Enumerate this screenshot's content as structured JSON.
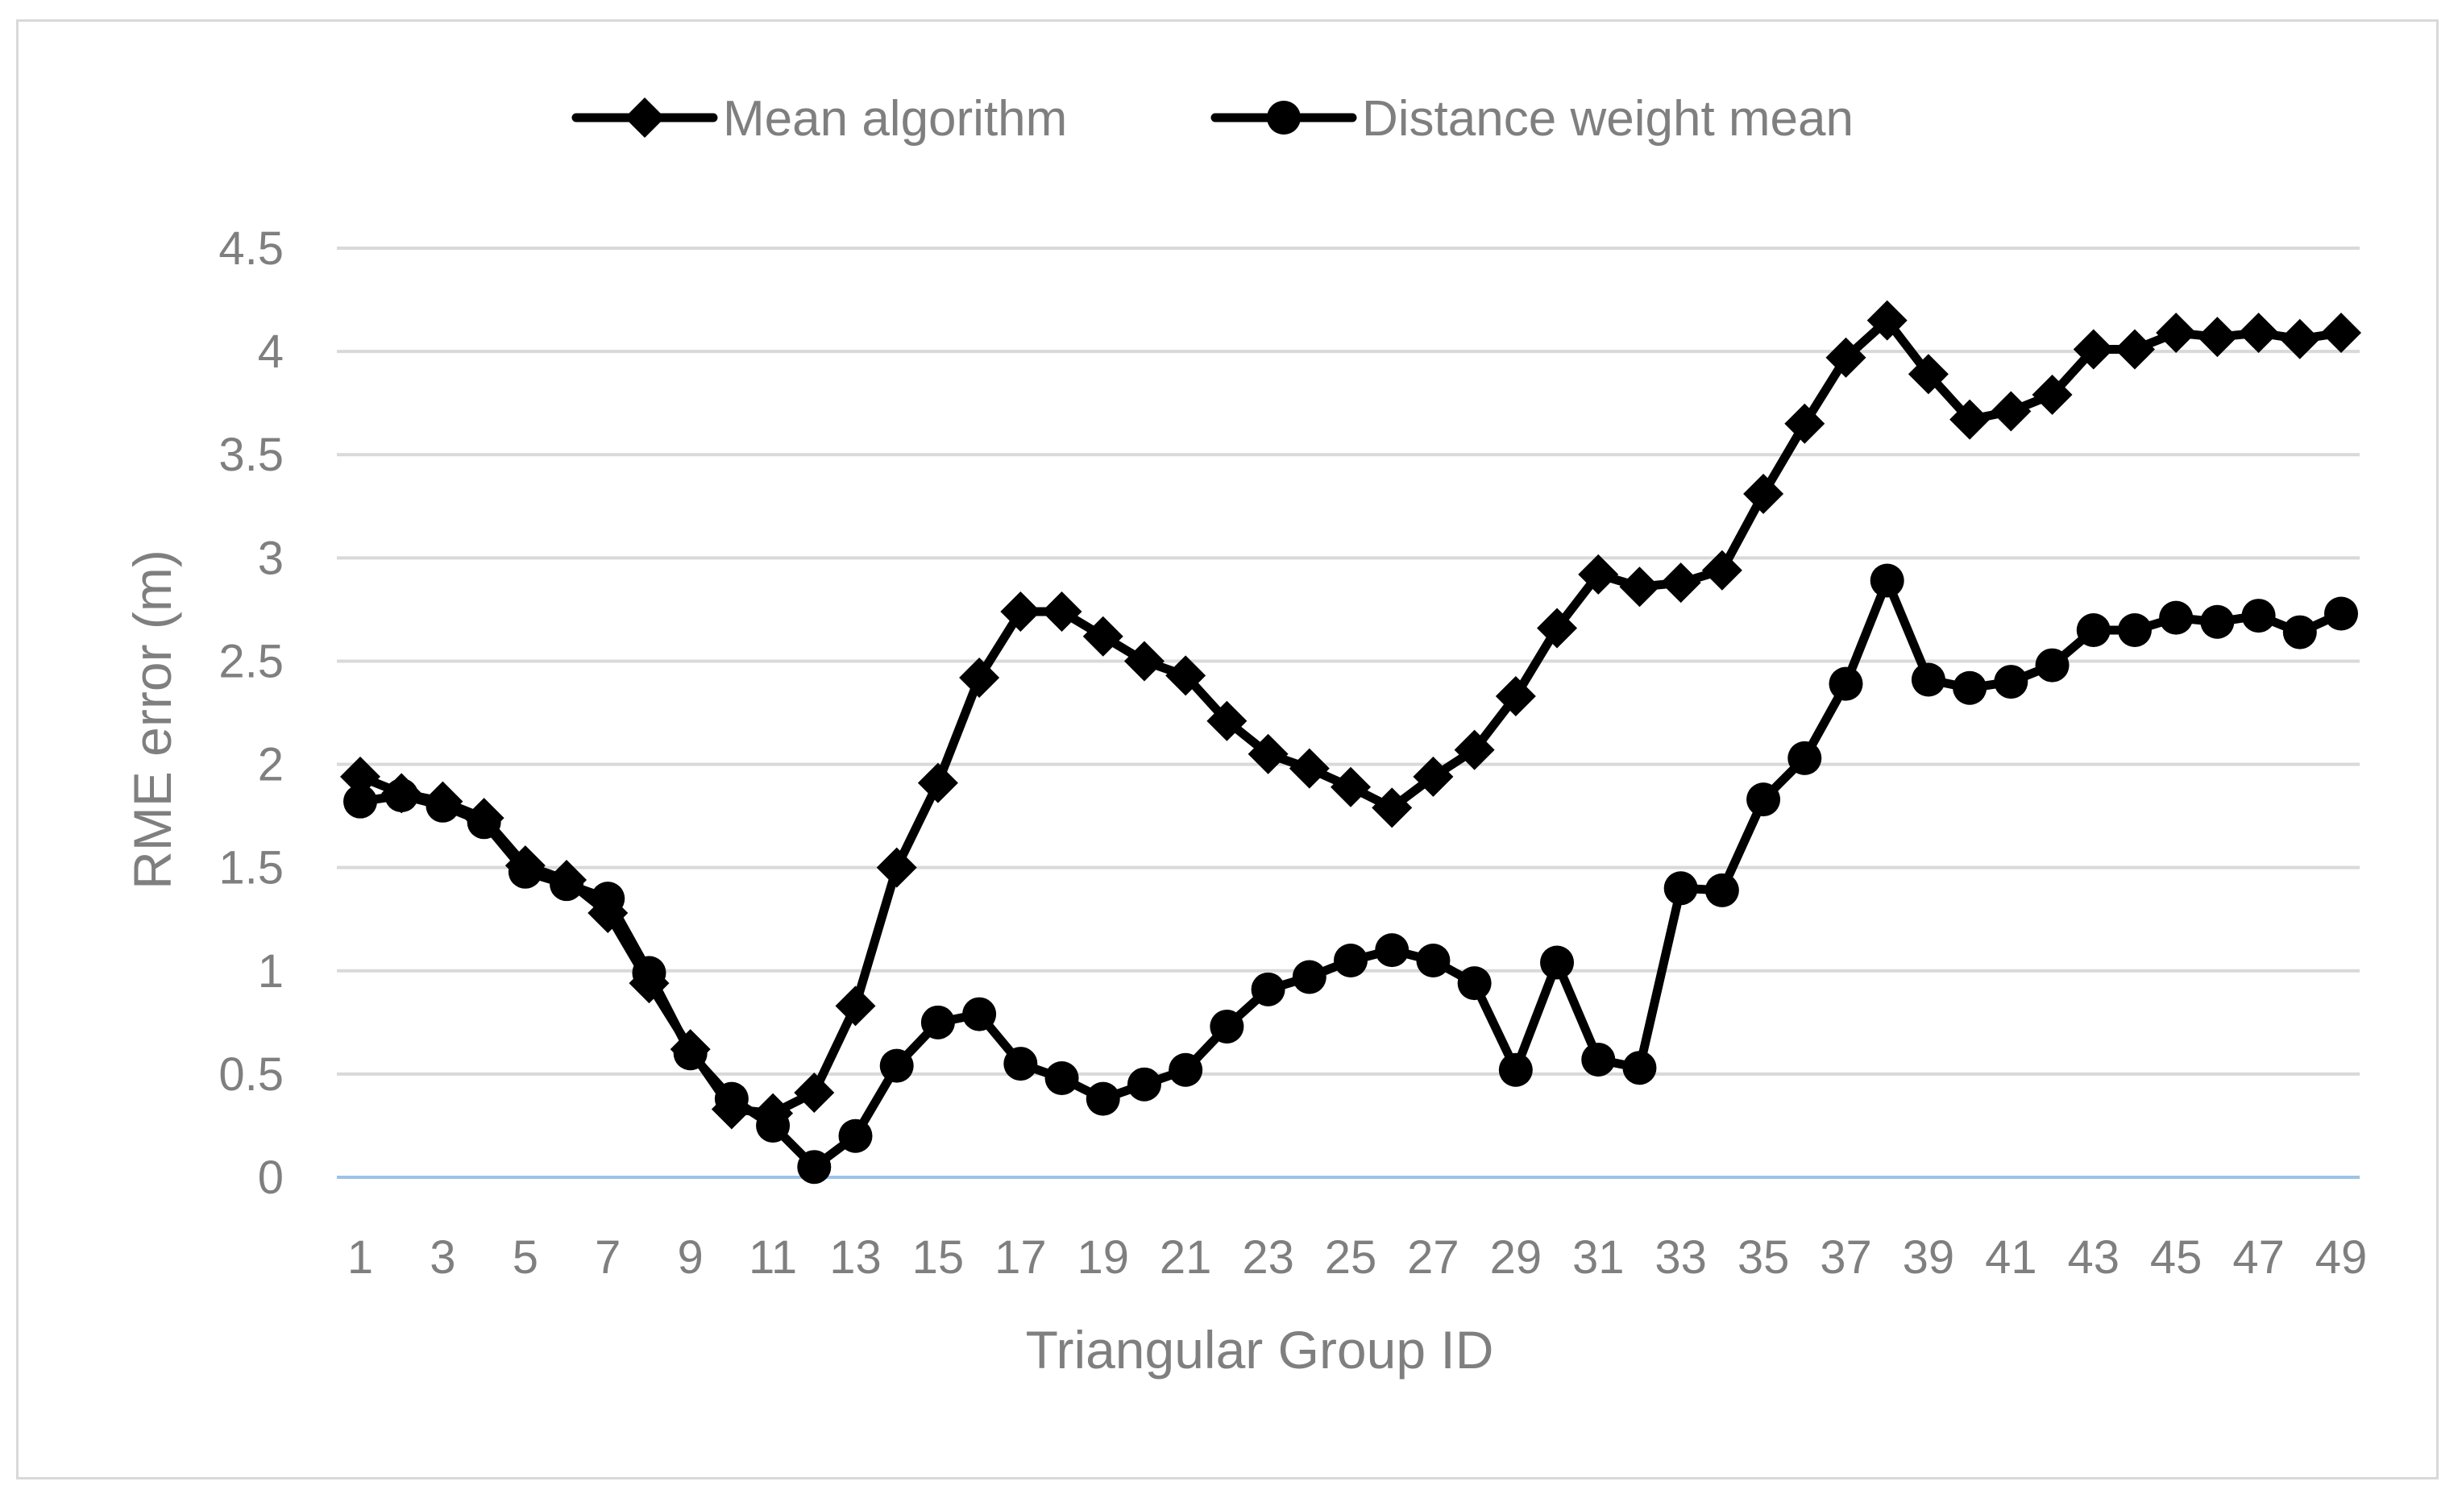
{
  "chart_data": {
    "type": "line",
    "title": "",
    "xlabel": "Triangular Group ID",
    "ylabel": "RME error (m)",
    "ylim": [
      0,
      4.5
    ],
    "yticks": [
      "0",
      "0.5",
      "1",
      "1.5",
      "2",
      "2.5",
      "3",
      "3.5",
      "4",
      "4.5"
    ],
    "x": [
      1,
      2,
      3,
      4,
      5,
      6,
      7,
      8,
      9,
      10,
      11,
      12,
      13,
      14,
      15,
      16,
      17,
      18,
      19,
      20,
      21,
      22,
      23,
      24,
      25,
      26,
      27,
      28,
      29,
      30,
      31,
      32,
      33,
      34,
      35,
      36,
      37,
      38,
      39,
      40,
      41,
      42,
      43,
      44,
      45,
      46,
      47,
      48,
      49
    ],
    "xtick_labels": [
      "1",
      "3",
      "5",
      "7",
      "9",
      "11",
      "13",
      "15",
      "17",
      "19",
      "21",
      "23",
      "25",
      "27",
      "29",
      "31",
      "33",
      "35",
      "37",
      "39",
      "41",
      "43",
      "45",
      "47",
      "49"
    ],
    "grid": true,
    "legend_position": "top-center",
    "series": [
      {
        "name": "Mean algorithm",
        "marker": "diamond",
        "values": [
          1.94,
          1.86,
          1.82,
          1.74,
          1.51,
          1.44,
          1.28,
          0.94,
          0.62,
          0.33,
          0.31,
          0.41,
          0.83,
          1.5,
          1.91,
          2.42,
          2.74,
          2.74,
          2.62,
          2.5,
          2.43,
          2.21,
          2.05,
          1.98,
          1.89,
          1.79,
          1.94,
          2.07,
          2.33,
          2.66,
          2.92,
          2.86,
          2.88,
          2.94,
          3.31,
          3.65,
          3.97,
          4.15,
          3.89,
          3.67,
          3.71,
          3.79,
          4.01,
          4.01,
          4.09,
          4.07,
          4.09,
          4.06,
          4.09
        ]
      },
      {
        "name": "Distance weight mean",
        "marker": "circle",
        "values": [
          1.82,
          1.85,
          1.8,
          1.72,
          1.48,
          1.42,
          1.35,
          0.99,
          0.6,
          0.38,
          0.25,
          0.05,
          0.2,
          0.54,
          0.75,
          0.79,
          0.55,
          0.48,
          0.38,
          0.45,
          0.52,
          0.73,
          0.91,
          0.97,
          1.05,
          1.1,
          1.05,
          0.94,
          0.52,
          1.04,
          0.57,
          0.53,
          1.4,
          1.39,
          1.83,
          2.03,
          2.39,
          2.89,
          2.41,
          2.37,
          2.4,
          2.48,
          2.65,
          2.65,
          2.71,
          2.69,
          2.72,
          2.64,
          2.73
        ]
      }
    ]
  }
}
